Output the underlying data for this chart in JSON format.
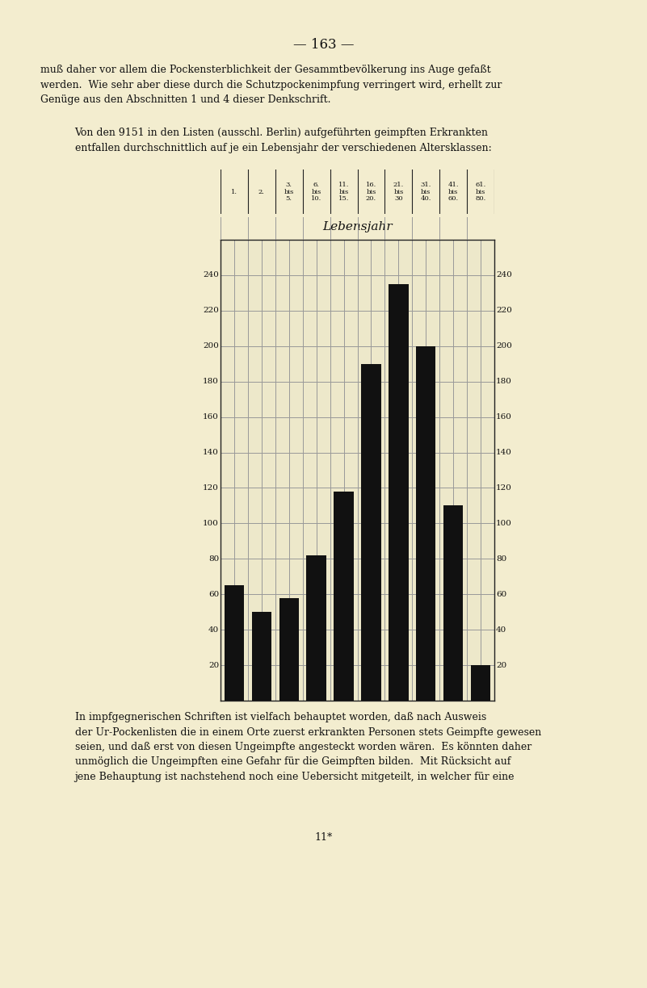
{
  "values": [
    65,
    50,
    58,
    82,
    118,
    190,
    235,
    200,
    110,
    20
  ],
  "cat_labels_line1": [
    "1.",
    "2.",
    "3.",
    "6.",
    "11.",
    "16.",
    "21.",
    "31.",
    "41.",
    "61."
  ],
  "cat_labels_line2": [
    "",
    "",
    "bis",
    "bis",
    "bis",
    "bis",
    "bis",
    "bis",
    "bis",
    "bis"
  ],
  "cat_labels_line3": [
    "",
    "",
    "5.",
    "10.",
    "15.",
    "20.",
    "30",
    "40.",
    "60.",
    "80."
  ],
  "bar_color": "#111111",
  "page_bg": "#f3edcf",
  "chart_bg": "#ede8ca",
  "grid_color": "#999999",
  "border_color": "#222222",
  "text_color": "#111111",
  "yticks": [
    20,
    40,
    60,
    80,
    100,
    120,
    140,
    160,
    180,
    200,
    220,
    240
  ],
  "ymax": 260,
  "ymin": 0,
  "title": "— 163 —",
  "lebensjahr": "Lebensjahr",
  "para1_line1": "muß daher vor allem die Pockensterblichkeit der Gesammtbevölkerung ins Auge gefaßt",
  "para1_line2": "werden.  Wie sehr aber diese durch die Schutzpockenimpfung verringert wird, erhellt zur",
  "para1_line3": "Genüge aus den Abschnitten 1 und 4 dieser Denkschrift.",
  "para2_line1": "Von den 9151 in den Listen (ausschl. Berlin) aufgeführten geimpften Erkrankten",
  "para2_line2": "entfallen durchschnittlich auf je ein Lebensjahr der verschiedenen Altersklassen:",
  "para3_line1": "In impfgegnerischen Schriften ist vielfach behauptet worden, daß nach Ausweis",
  "para3_line2": "der Ur-Pockenlisten die in einem Orte zuerst erkrankten Personen stets Geimpfte gewesen",
  "para3_line3": "seien, und daß erst von diesen Ungeimpfte angesteckt worden wären.  Es könnten daher",
  "para3_line4": "unmöglich die Ungeimpften eine Gefahr für die Geimpften bilden.  Mit Rücksicht auf",
  "para3_line5": "jene Behauptung ist nachstehend noch eine Uebersicht mitgeteilt, in welcher für eine",
  "footnote": "11*"
}
